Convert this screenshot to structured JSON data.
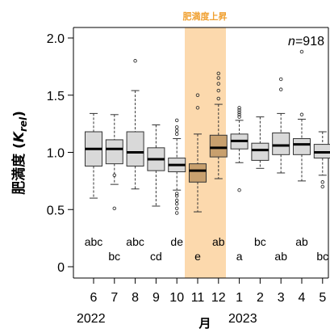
{
  "chart_data": {
    "type": "box",
    "highlight_label": "肥満度上昇",
    "n_label": "=918",
    "n_symbol": "n",
    "ylabel": "肥満度 (",
    "ylabel_sym": "K",
    "ylabel_sub": "rel",
    "ylabel_end": ")",
    "xlabel": "月",
    "ylim": [
      0,
      2.0
    ],
    "yticks": [
      "0",
      "0.5",
      "1.0",
      "1.5",
      "2.0"
    ],
    "categories": [
      "6",
      "7",
      "8",
      "9",
      "10",
      "11",
      "12",
      "1",
      "2",
      "3",
      "4",
      "5"
    ],
    "year_labels": [
      "2022",
      "2023"
    ],
    "highlight_months": [
      "11",
      "12"
    ],
    "colors": {
      "normal_fill": "#d9d9d9",
      "highlight_fill": "#c8a06e",
      "band": "#fcd9ad",
      "accent_text": "#f0a030"
    },
    "boxes": [
      {
        "month": "6",
        "whisker_low": 0.6,
        "q1": 0.88,
        "median": 1.03,
        "q3": 1.18,
        "whisker_high": 1.34,
        "outliers": [],
        "letters": "abc"
      },
      {
        "month": "7",
        "whisker_low": 0.72,
        "q1": 0.9,
        "median": 1.03,
        "q3": 1.11,
        "whisker_high": 1.33,
        "outliers": [
          0.51,
          0.8
        ],
        "letters": "bc"
      },
      {
        "month": "8",
        "whisker_low": 0.68,
        "q1": 0.88,
        "median": 1.0,
        "q3": 1.18,
        "whisker_high": 1.54,
        "outliers": [
          1.8
        ],
        "letters": "abc"
      },
      {
        "month": "9",
        "whisker_low": 0.53,
        "q1": 0.84,
        "median": 0.94,
        "q3": 1.04,
        "whisker_high": 1.24,
        "outliers": [],
        "letters": "cd"
      },
      {
        "month": "10",
        "whisker_low": 0.67,
        "q1": 0.83,
        "median": 0.89,
        "q3": 0.95,
        "whisker_high": 1.12,
        "outliers": [
          0.47,
          0.51,
          0.55,
          0.58,
          0.62,
          0.64,
          1.16,
          1.19,
          1.22,
          1.28
        ],
        "letters": "de"
      },
      {
        "month": "11",
        "whisker_low": 0.48,
        "q1": 0.74,
        "median": 0.84,
        "q3": 0.9,
        "whisker_high": 1.16,
        "outliers": [
          1.39,
          1.5
        ],
        "letters": "e"
      },
      {
        "month": "12",
        "whisker_low": 0.77,
        "q1": 0.96,
        "median": 1.04,
        "q3": 1.15,
        "whisker_high": 1.42,
        "outliers": [
          1.47,
          1.54,
          1.6,
          1.65,
          1.69
        ],
        "letters": "ab"
      },
      {
        "month": "1",
        "whisker_low": 0.91,
        "q1": 1.03,
        "median": 1.1,
        "q3": 1.16,
        "whisker_high": 1.28,
        "outliers": [
          0.67,
          1.31,
          1.33,
          1.35,
          1.37,
          1.39
        ],
        "letters": "a"
      },
      {
        "month": "2",
        "whisker_low": 0.86,
        "q1": 0.93,
        "median": 1.02,
        "q3": 1.08,
        "whisker_high": 1.31,
        "outliers": [],
        "letters": "bc"
      },
      {
        "month": "3",
        "whisker_low": 0.82,
        "q1": 0.98,
        "median": 1.06,
        "q3": 1.17,
        "whisker_high": 1.34,
        "outliers": [
          1.55,
          1.64
        ],
        "letters": "ab"
      },
      {
        "month": "4",
        "whisker_low": 0.75,
        "q1": 0.98,
        "median": 1.07,
        "q3": 1.12,
        "whisker_high": 1.29,
        "outliers": [
          1.33,
          1.88
        ],
        "letters": "ab"
      },
      {
        "month": "5",
        "whisker_low": 0.8,
        "q1": 0.95,
        "median": 1.0,
        "q3": 1.07,
        "whisker_high": 1.18,
        "outliers": [
          0.7,
          0.74
        ],
        "letters": "bc"
      }
    ]
  }
}
